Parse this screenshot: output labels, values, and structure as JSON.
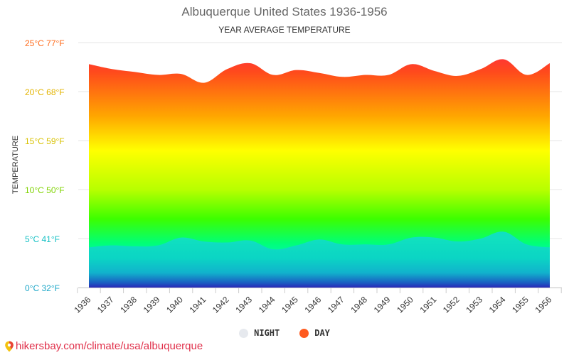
{
  "title": "Albuquerque United States 1936-1956",
  "subtitle": "YEAR AVERAGE TEMPERATURE",
  "legend": {
    "night": {
      "label": "NIGHT",
      "color": "#e6e9ee"
    },
    "day": {
      "label": "DAY",
      "color": "#ff5a1f"
    }
  },
  "footer": {
    "text": "hikersbay.com/climate/usa/albuquerque",
    "icon": "map-pin-icon"
  },
  "chart_data": {
    "type": "area",
    "title": "Albuquerque United States 1936-1956",
    "subtitle": "YEAR AVERAGE TEMPERATURE",
    "ylabel": "TEMPERATURE",
    "xlabel": "",
    "ylim": [
      0,
      25
    ],
    "yticks": [
      {
        "value": 0,
        "label": "0°C 32°F",
        "color": "#1ea7c8"
      },
      {
        "value": 5,
        "label": "5°C 41°F",
        "color": "#17c1c5"
      },
      {
        "value": 10,
        "label": "10°C 50°F",
        "color": "#7fd300"
      },
      {
        "value": 15,
        "label": "15°C 59°F",
        "color": "#d8c200"
      },
      {
        "value": 20,
        "label": "20°C 68°F",
        "color": "#e3b400"
      },
      {
        "value": 25,
        "label": "25°C 77°F",
        "color": "#ff6a1a"
      }
    ],
    "x": [
      "1936",
      "1937",
      "1938",
      "1939",
      "1940",
      "1941",
      "1942",
      "1943",
      "1944",
      "1945",
      "1946",
      "1947",
      "1948",
      "1949",
      "1950",
      "1951",
      "1952",
      "1953",
      "1954",
      "1955",
      "1956"
    ],
    "series": [
      {
        "name": "DAY",
        "color": "#ff5a1f",
        "values": [
          22.8,
          22.3,
          22.0,
          21.7,
          21.8,
          20.9,
          22.3,
          22.9,
          21.7,
          22.2,
          21.9,
          21.5,
          21.7,
          21.7,
          22.8,
          22.1,
          21.6,
          22.3,
          23.3,
          21.7,
          22.9
        ]
      },
      {
        "name": "NIGHT",
        "color": "#e6e9ee",
        "values": [
          4.1,
          4.3,
          4.2,
          4.3,
          5.1,
          4.7,
          4.6,
          4.8,
          3.9,
          4.3,
          4.9,
          4.4,
          4.4,
          4.4,
          5.1,
          5.1,
          4.7,
          5.0,
          5.7,
          4.4,
          4.1
        ]
      }
    ],
    "grid": true,
    "legend_position": "bottom"
  }
}
